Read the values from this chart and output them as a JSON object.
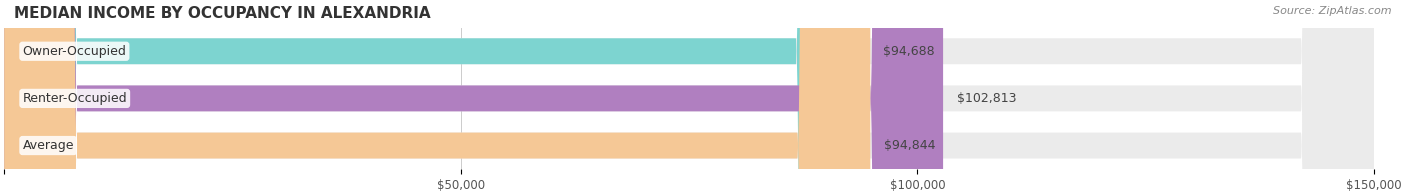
{
  "title": "MEDIAN INCOME BY OCCUPANCY IN ALEXANDRIA",
  "source": "Source: ZipAtlas.com",
  "categories": [
    "Owner-Occupied",
    "Renter-Occupied",
    "Average"
  ],
  "values": [
    94688,
    102813,
    94844
  ],
  "value_labels": [
    "$94,688",
    "$102,813",
    "$94,844"
  ],
  "bar_colors": [
    "#7dd4d0",
    "#b07fc0",
    "#f5c896"
  ],
  "bar_bg_colors": [
    "#ebebeb",
    "#ebebeb",
    "#ebebeb"
  ],
  "xlim": [
    0,
    150000
  ],
  "xticks": [
    0,
    50000,
    100000,
    150000
  ],
  "xticklabels": [
    "",
    "$50,000",
    "$100,000",
    "$150,000"
  ],
  "bar_height": 0.55,
  "bg_color": "#ffffff",
  "title_fontsize": 11,
  "label_fontsize": 9,
  "tick_fontsize": 8.5,
  "source_fontsize": 8
}
